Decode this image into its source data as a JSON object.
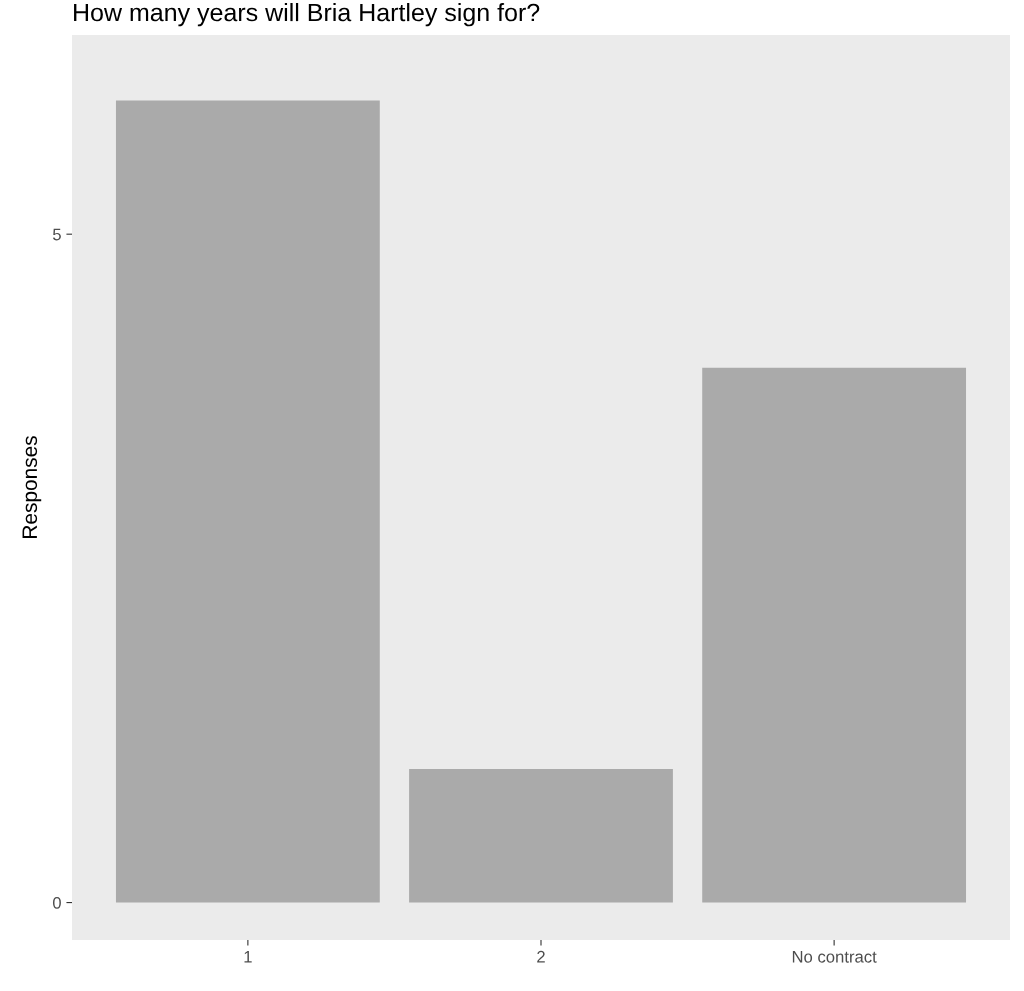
{
  "chart_data": {
    "type": "bar",
    "title": "How many years will Bria Hartley sign for?",
    "ylabel": "Responses",
    "categories": [
      "1",
      "2",
      "No contract"
    ],
    "values": [
      6,
      1,
      4
    ],
    "color": "#aaaaaa",
    "ylim": [
      -0.28,
      6.49
    ],
    "yticks": [
      0,
      5
    ],
    "grid": false
  }
}
